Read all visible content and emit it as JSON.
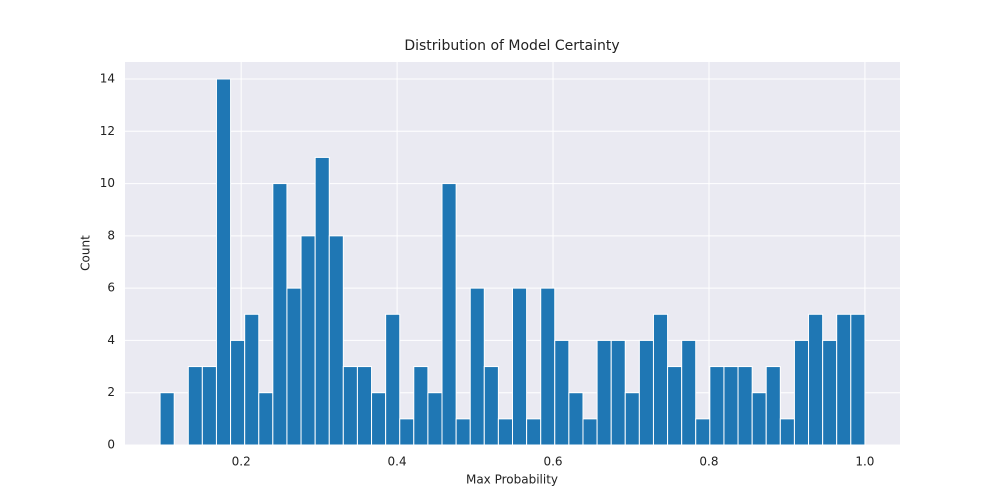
{
  "chart_data": {
    "type": "histogram",
    "title": "Distribution of Model Certainty",
    "x_label": "Max Probability",
    "y_label": "Count",
    "bins": [
      0.096,
      0.1141,
      0.1322,
      0.1502,
      0.1683,
      0.1864,
      0.2045,
      0.2226,
      0.2406,
      0.2587,
      0.2768,
      0.2949,
      0.313,
      0.331,
      0.3491,
      0.3672,
      0.3853,
      0.4034,
      0.4214,
      0.4395,
      0.4576,
      0.4757,
      0.4938,
      0.5118,
      0.5299,
      0.548,
      0.5661,
      0.5842,
      0.6022,
      0.6203,
      0.6384,
      0.6565,
      0.6746,
      0.6926,
      0.7107,
      0.7288,
      0.7469,
      0.765,
      0.783,
      0.8011,
      0.8192,
      0.8373,
      0.8554,
      0.8734,
      0.8915,
      0.9096,
      0.9277,
      0.9458,
      0.9638,
      0.9819,
      1.0
    ],
    "values": [
      2,
      0,
      3,
      3,
      14,
      4,
      5,
      2,
      10,
      6,
      8,
      11,
      8,
      3,
      3,
      2,
      5,
      1,
      3,
      2,
      10,
      1,
      6,
      3,
      1,
      6,
      1,
      6,
      4,
      2,
      1,
      4,
      4,
      2,
      4,
      5,
      3,
      4,
      1,
      3,
      3,
      3,
      2,
      3,
      1,
      4,
      5,
      4,
      5,
      5
    ],
    "color": "#1f77b4",
    "xlim": [
      0.051,
      1.045
    ],
    "ylim": [
      0,
      14.65
    ],
    "xticks": [
      0.2,
      0.4,
      0.6,
      0.8,
      {
        "value": 1.0,
        "label": "1.0"
      }
    ],
    "yticks": [
      0,
      2,
      4,
      6,
      8,
      10,
      12,
      14
    ],
    "grid": true
  }
}
